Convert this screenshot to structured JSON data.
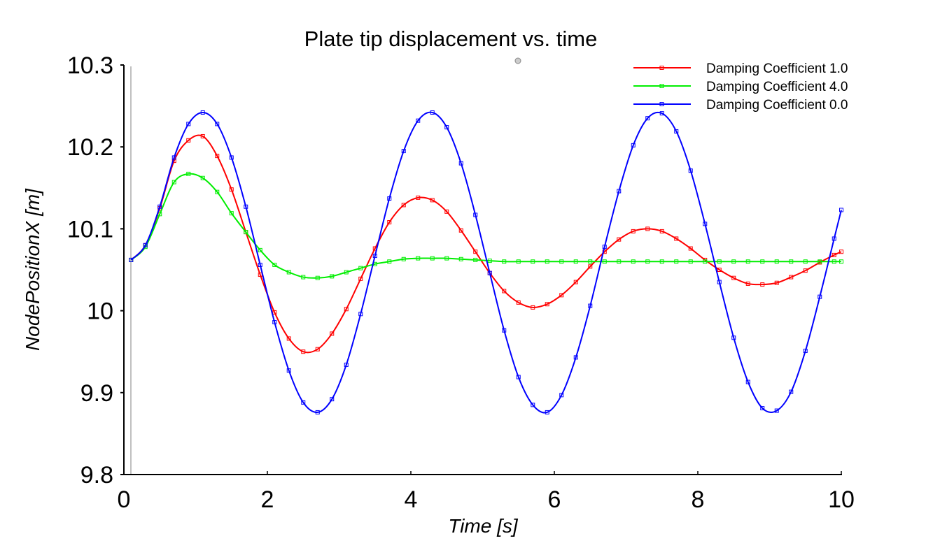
{
  "chart_data": {
    "type": "line",
    "title": "Plate tip displacement vs. time",
    "xlabel": "Time [s]",
    "ylabel": "NodePositionX [m]",
    "xlim": [
      0,
      10
    ],
    "ylim": [
      9.8,
      10.3
    ],
    "xticks": [
      "0",
      "2",
      "4",
      "6",
      "8",
      "10"
    ],
    "yticks": [
      "9.8",
      "9.9",
      "10",
      "10.1",
      "10.2",
      "10.3"
    ],
    "grid": false,
    "legend_position": "top-right",
    "markers": "square",
    "x": [
      0.1,
      0.3,
      0.5,
      0.7,
      0.9,
      1.1,
      1.3,
      1.5,
      1.7,
      1.9,
      2.1,
      2.3,
      2.5,
      2.7,
      2.9,
      3.1,
      3.3,
      3.5,
      3.7,
      3.9,
      4.1,
      4.3,
      4.5,
      4.7,
      4.9,
      5.1,
      5.3,
      5.5,
      5.7,
      5.9,
      6.1,
      6.3,
      6.5,
      6.7,
      6.9,
      7.1,
      7.3,
      7.5,
      7.7,
      7.9,
      8.1,
      8.3,
      8.5,
      8.7,
      8.9,
      9.1,
      9.3,
      9.5,
      9.7,
      9.9,
      10.0
    ],
    "series": [
      {
        "name": "Damping Coefficient 1.0",
        "color": "#ff0000",
        "values": [
          10.062,
          10.08,
          10.125,
          10.183,
          10.208,
          10.213,
          10.189,
          10.148,
          10.096,
          10.044,
          9.998,
          9.966,
          9.95,
          9.953,
          9.972,
          10.002,
          10.039,
          10.076,
          10.108,
          10.129,
          10.138,
          10.135,
          10.121,
          10.098,
          10.072,
          10.046,
          10.024,
          10.01,
          10.004,
          10.008,
          10.019,
          10.035,
          10.054,
          10.072,
          10.087,
          10.097,
          10.1,
          10.097,
          10.088,
          10.076,
          10.062,
          10.05,
          10.04,
          10.033,
          10.032,
          10.034,
          10.041,
          10.049,
          10.059,
          10.068,
          10.072
        ]
      },
      {
        "name": "Damping Coefficient 4.0",
        "color": "#00ee00",
        "values": [
          10.062,
          10.078,
          10.118,
          10.157,
          10.167,
          10.162,
          10.145,
          10.119,
          10.096,
          10.074,
          10.056,
          10.047,
          10.041,
          10.04,
          10.042,
          10.047,
          10.052,
          10.057,
          10.06,
          10.063,
          10.064,
          10.064,
          10.064,
          10.063,
          10.062,
          10.061,
          10.06,
          10.06,
          10.06,
          10.06,
          10.06,
          10.06,
          10.06,
          10.06,
          10.06,
          10.06,
          10.06,
          10.06,
          10.06,
          10.06,
          10.06,
          10.06,
          10.06,
          10.06,
          10.06,
          10.06,
          10.06,
          10.06,
          10.06,
          10.06,
          10.06
        ]
      },
      {
        "name": "Damping Coefficient 0.0",
        "color": "#0000ff",
        "values": [
          10.062,
          10.08,
          10.127,
          10.187,
          10.228,
          10.242,
          10.228,
          10.187,
          10.127,
          10.056,
          9.986,
          9.927,
          9.888,
          9.876,
          9.892,
          9.934,
          9.996,
          10.067,
          10.137,
          10.195,
          10.232,
          10.242,
          10.224,
          10.18,
          10.117,
          10.046,
          9.976,
          9.919,
          9.885,
          9.876,
          9.897,
          9.943,
          10.006,
          10.078,
          10.146,
          10.202,
          10.235,
          10.241,
          10.219,
          10.171,
          10.106,
          10.035,
          9.967,
          9.913,
          9.881,
          9.878,
          9.901,
          9.951,
          10.017,
          10.088,
          10.123
        ]
      }
    ]
  }
}
